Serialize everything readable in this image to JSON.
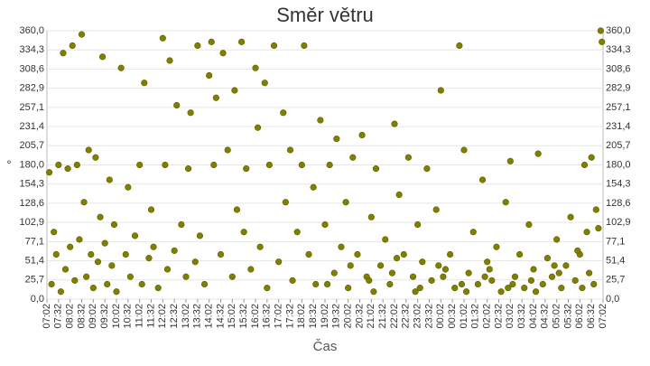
{
  "chart_data": {
    "type": "scatter",
    "title": "Směr větru",
    "x_label": "Čas",
    "y_label": "°",
    "color": "#808000",
    "grid": true,
    "xlim": [
      0,
      24
    ],
    "ylim": [
      0,
      360
    ],
    "xticks": [
      {
        "value": 0,
        "label": "07:02"
      },
      {
        "value": 0.5,
        "label": "07:32"
      },
      {
        "value": 1,
        "label": "08:02"
      },
      {
        "value": 1.5,
        "label": "08:32"
      },
      {
        "value": 2,
        "label": "09:02"
      },
      {
        "value": 2.5,
        "label": "09:32"
      },
      {
        "value": 3,
        "label": "10:02"
      },
      {
        "value": 3.5,
        "label": "10:32"
      },
      {
        "value": 4,
        "label": "11:02"
      },
      {
        "value": 4.5,
        "label": "11:32"
      },
      {
        "value": 5,
        "label": "12:02"
      },
      {
        "value": 5.5,
        "label": "12:32"
      },
      {
        "value": 6,
        "label": "13:02"
      },
      {
        "value": 6.5,
        "label": "13:32"
      },
      {
        "value": 7,
        "label": "14:02"
      },
      {
        "value": 7.5,
        "label": "14:32"
      },
      {
        "value": 8,
        "label": "15:02"
      },
      {
        "value": 8.5,
        "label": "15:32"
      },
      {
        "value": 9,
        "label": "16:02"
      },
      {
        "value": 9.5,
        "label": "16:32"
      },
      {
        "value": 10,
        "label": "17:02"
      },
      {
        "value": 10.5,
        "label": "17:32"
      },
      {
        "value": 11,
        "label": "18:02"
      },
      {
        "value": 11.5,
        "label": "18:32"
      },
      {
        "value": 12,
        "label": "19:02"
      },
      {
        "value": 12.5,
        "label": "19:32"
      },
      {
        "value": 13,
        "label": "20:02"
      },
      {
        "value": 13.5,
        "label": "20:32"
      },
      {
        "value": 14,
        "label": "21:02"
      },
      {
        "value": 14.5,
        "label": "21:32"
      },
      {
        "value": 15,
        "label": "22:02"
      },
      {
        "value": 15.5,
        "label": "22:32"
      },
      {
        "value": 16,
        "label": "23:02"
      },
      {
        "value": 16.5,
        "label": "23:32"
      },
      {
        "value": 17,
        "label": "00:02"
      },
      {
        "value": 17.5,
        "label": "00:32"
      },
      {
        "value": 18,
        "label": "01:02"
      },
      {
        "value": 18.5,
        "label": "01:32"
      },
      {
        "value": 19,
        "label": "02:02"
      },
      {
        "value": 19.5,
        "label": "02:32"
      },
      {
        "value": 20,
        "label": "03:02"
      },
      {
        "value": 20.5,
        "label": "03:32"
      },
      {
        "value": 21,
        "label": "04:02"
      },
      {
        "value": 21.5,
        "label": "04:32"
      },
      {
        "value": 22,
        "label": "05:02"
      },
      {
        "value": 22.5,
        "label": "05:32"
      },
      {
        "value": 23,
        "label": "06:02"
      },
      {
        "value": 23.5,
        "label": "06:32"
      },
      {
        "value": 24,
        "label": "07:02"
      }
    ],
    "yticks": [
      {
        "value": 0,
        "label": "0,0"
      },
      {
        "value": 25.7,
        "label": "25,7"
      },
      {
        "value": 51.4,
        "label": "51,4"
      },
      {
        "value": 77.1,
        "label": "77,1"
      },
      {
        "value": 102.9,
        "label": "102,9"
      },
      {
        "value": 128.6,
        "label": "128,6"
      },
      {
        "value": 154.3,
        "label": "154,3"
      },
      {
        "value": 180,
        "label": "180,0"
      },
      {
        "value": 205.7,
        "label": "205,7"
      },
      {
        "value": 231.4,
        "label": "231,4"
      },
      {
        "value": 257.1,
        "label": "257,1"
      },
      {
        "value": 282.9,
        "label": "282,9"
      },
      {
        "value": 308.6,
        "label": "308,6"
      },
      {
        "value": 334.3,
        "label": "334,3"
      },
      {
        "value": 360,
        "label": "360,0"
      }
    ],
    "x": [
      0.1,
      0.2,
      0.3,
      0.4,
      0.5,
      0.6,
      0.7,
      0.8,
      0.9,
      1.0,
      1.1,
      1.2,
      1.3,
      1.4,
      1.5,
      1.6,
      1.7,
      1.8,
      1.9,
      2.0,
      2.1,
      2.2,
      2.3,
      2.4,
      2.5,
      2.6,
      2.7,
      2.8,
      2.9,
      3.0,
      3.2,
      3.4,
      3.5,
      3.6,
      3.8,
      4.0,
      4.1,
      4.2,
      4.4,
      4.5,
      4.6,
      4.8,
      5.0,
      5.1,
      5.2,
      5.3,
      5.5,
      5.6,
      5.8,
      6.0,
      6.1,
      6.2,
      6.4,
      6.5,
      6.6,
      6.8,
      7.0,
      7.1,
      7.2,
      7.3,
      7.5,
      7.6,
      7.8,
      8.0,
      8.1,
      8.2,
      8.4,
      8.5,
      8.6,
      8.8,
      9.0,
      9.1,
      9.2,
      9.4,
      9.5,
      9.6,
      9.8,
      10.0,
      10.2,
      10.3,
      10.5,
      10.6,
      10.8,
      11.0,
      11.1,
      11.3,
      11.5,
      11.6,
      11.8,
      12.0,
      12.2,
      12.4,
      12.5,
      12.7,
      12.9,
      13.0,
      13.2,
      13.4,
      13.6,
      13.8,
      14.0,
      14.2,
      14.4,
      14.6,
      14.8,
      15.0,
      15.2,
      15.4,
      15.6,
      15.8,
      16.0,
      16.2,
      16.4,
      16.6,
      16.8,
      17.0,
      17.2,
      17.4,
      17.6,
      17.8,
      18.0,
      18.2,
      18.4,
      18.6,
      18.8,
      19.0,
      19.2,
      19.4,
      19.6,
      19.8,
      20.0,
      20.2,
      20.4,
      20.6,
      20.8,
      21.0,
      21.2,
      21.4,
      21.6,
      21.8,
      22.0,
      22.2,
      22.4,
      22.6,
      22.8,
      23.0,
      23.2,
      23.4,
      23.6,
      23.8,
      12.1,
      13.1,
      14.1,
      15.1,
      16.1,
      17.1,
      18.1,
      19.1,
      20.1,
      21.1,
      22.1,
      23.1,
      23.5,
      23.7,
      23.9,
      23.95,
      23.3,
      22.9,
      21.9,
      20.9,
      19.9,
      18.9,
      17.9,
      16.9,
      15.9,
      14.9,
      13.9
    ],
    "values": [
      170,
      20,
      90,
      60,
      180,
      10,
      330,
      40,
      175,
      70,
      340,
      25,
      180,
      80,
      355,
      130,
      30,
      200,
      60,
      15,
      190,
      50,
      110,
      325,
      75,
      20,
      160,
      45,
      100,
      10,
      310,
      60,
      150,
      30,
      85,
      180,
      20,
      290,
      55,
      120,
      70,
      15,
      350,
      180,
      40,
      320,
      65,
      260,
      100,
      30,
      175,
      250,
      50,
      340,
      85,
      20,
      300,
      345,
      180,
      270,
      60,
      330,
      200,
      30,
      280,
      120,
      345,
      90,
      175,
      40,
      310,
      230,
      70,
      290,
      15,
      180,
      340,
      50,
      250,
      130,
      200,
      25,
      90,
      180,
      340,
      60,
      150,
      20,
      240,
      100,
      180,
      35,
      215,
      70,
      130,
      15,
      190,
      60,
      220,
      30,
      110,
      175,
      45,
      80,
      20,
      235,
      140,
      60,
      190,
      30,
      100,
      50,
      175,
      25,
      120,
      280,
      40,
      60,
      15,
      340,
      200,
      35,
      90,
      20,
      160,
      50,
      25,
      70,
      10,
      130,
      185,
      30,
      60,
      15,
      100,
      40,
      195,
      20,
      55,
      30,
      80,
      15,
      45,
      110,
      25,
      60,
      180,
      35,
      20,
      95,
      20,
      45,
      10,
      55,
      15,
      30,
      10,
      40,
      20,
      10,
      35,
      15,
      190,
      120,
      360,
      345,
      90,
      65,
      45,
      25,
      15,
      30,
      20,
      45,
      10,
      35,
      25
    ]
  }
}
